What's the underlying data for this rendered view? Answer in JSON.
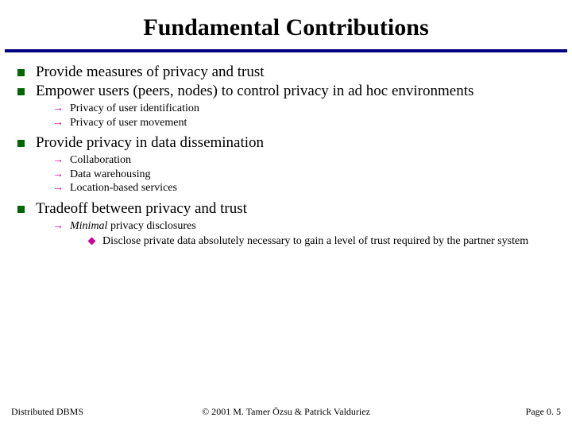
{
  "title": "Fundamental Contributions",
  "bullets": {
    "b0": "Provide measures of privacy and trust",
    "b1": "Empower users (peers, nodes) to control privacy in ad hoc environments",
    "b1_sub0": "Privacy of user identification",
    "b1_sub1": "Privacy of user movement",
    "b2": "Provide privacy in data dissemination",
    "b2_sub0": "Collaboration",
    "b2_sub1": "Data warehousing",
    "b2_sub2": "Location-based services",
    "b3": "Tradeoff between privacy and trust",
    "b3_sub0_prefix": "Minimal",
    "b3_sub0_rest": " privacy disclosures",
    "b3_sub0_d0": "Disclose private data absolutely necessary to gain a level of trust required by the partner system"
  },
  "footer": {
    "left": "Distributed DBMS",
    "center": "© 2001 M. Tamer Özsu & Patrick Valduriez",
    "right": "Page 0. 5"
  },
  "colors": {
    "rule": "#000080",
    "square_bullet": "#006600",
    "arrow": "#cc0099",
    "diamond": "#cc0099",
    "background": "#ffffff",
    "text": "#000000"
  },
  "typography": {
    "title_fontsize": 30,
    "lvl1_fontsize": 19,
    "lvl2_fontsize": 14,
    "lvl3_fontsize": 14,
    "footer_fontsize": 12,
    "font_family": "Times New Roman"
  },
  "glyphs": {
    "arrow": "→"
  }
}
